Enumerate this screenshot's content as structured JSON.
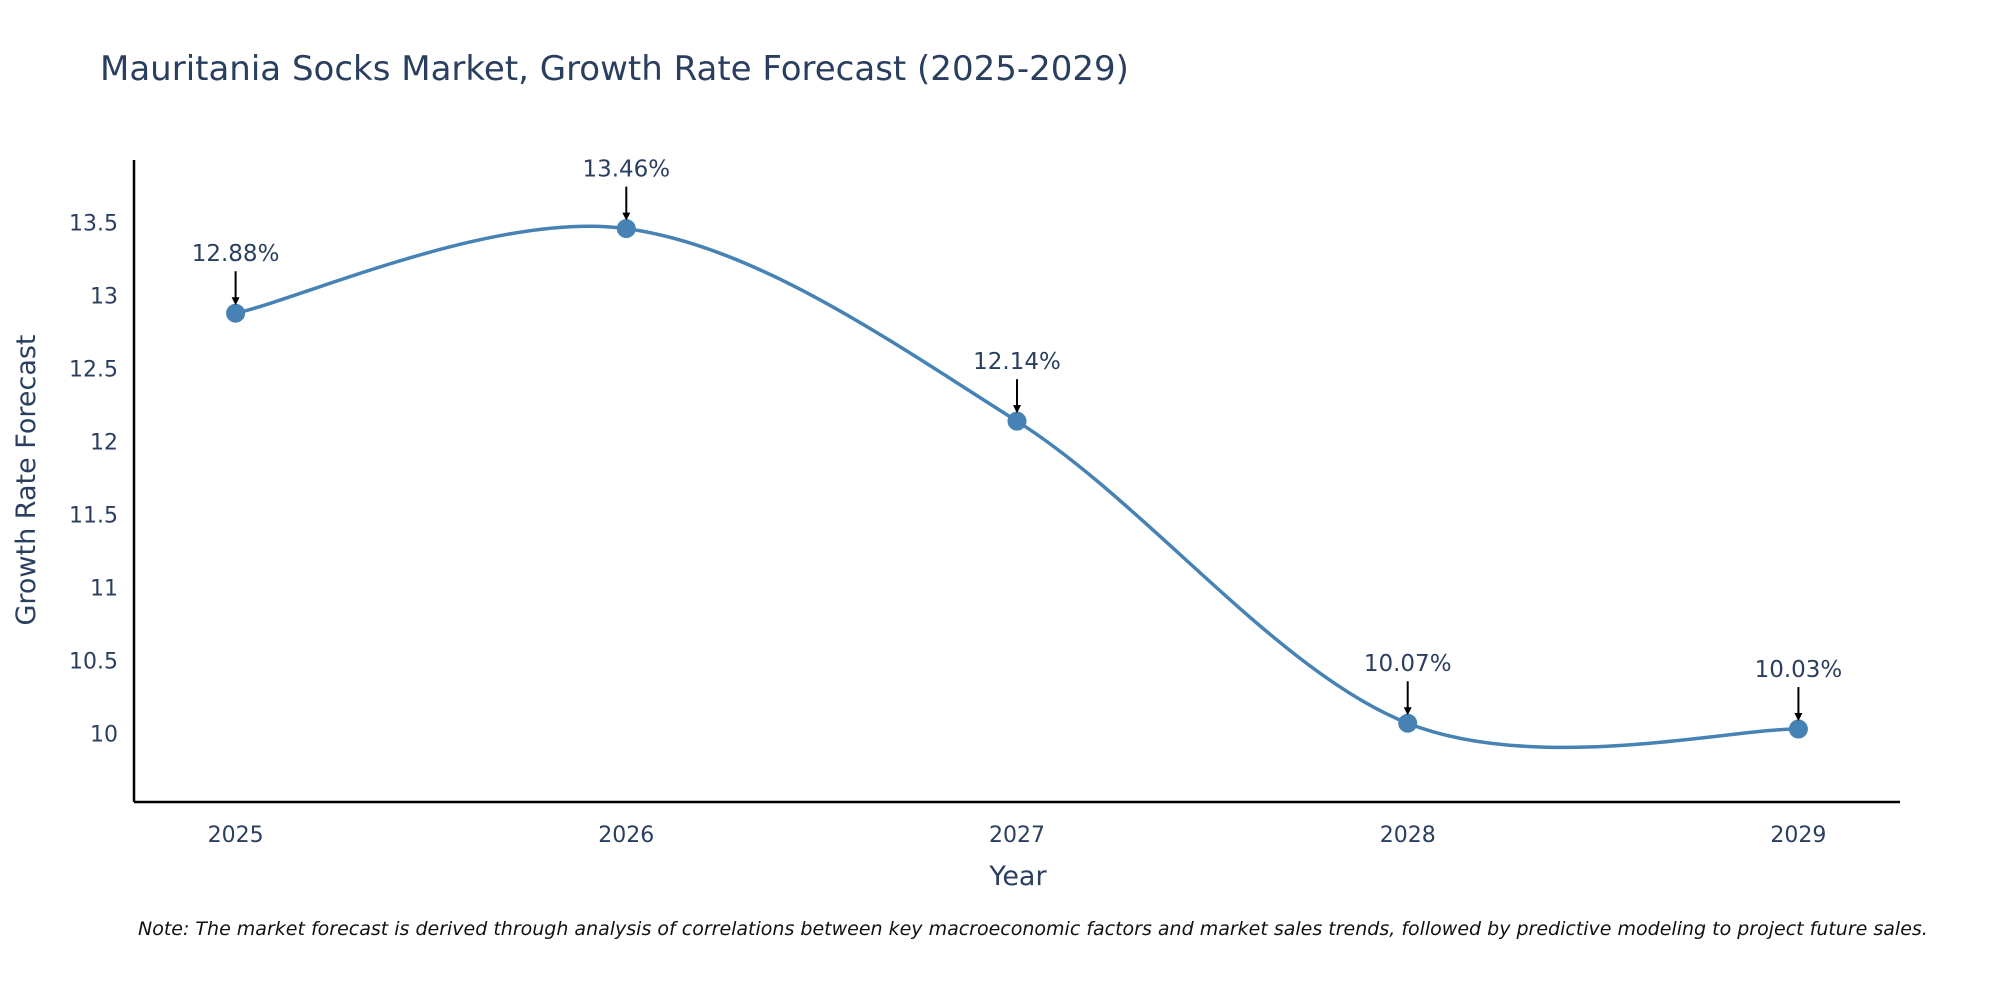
{
  "colors": {
    "line": "#4682b4",
    "marker": "#4682b4",
    "axis": "#000000",
    "text": "#2a3f5f",
    "arrow": "#000000"
  },
  "note": "Note: The market forecast is derived through analysis of correlations between key macroeconomic factors and market sales trends, followed by predictive modeling to project future sales.",
  "chart_data": {
    "type": "line",
    "title": "Mauritania Socks Market, Growth Rate Forecast (2025-2029)",
    "xlabel": "Year",
    "ylabel": "Growth Rate Forecast",
    "categories": [
      "2025",
      "2026",
      "2027",
      "2028",
      "2029"
    ],
    "series": [
      {
        "name": "Growth Rate Forecast",
        "values": [
          12.88,
          13.46,
          12.14,
          10.07,
          10.03
        ],
        "labels": [
          "12.88%",
          "13.46%",
          "12.14%",
          "10.07%",
          "10.03%"
        ]
      }
    ],
    "xlim": [
      2024.74,
      2029.26
    ],
    "ylim": [
      9.53,
      13.93
    ],
    "yticks": [
      10,
      10.5,
      11,
      11.5,
      12,
      12.5,
      13,
      13.5
    ],
    "ytick_labels": [
      "10",
      "10.5",
      "11",
      "11.5",
      "12",
      "12.5",
      "13",
      "13.5"
    ],
    "line_shape": "spline",
    "grid": false,
    "legend": "none"
  }
}
